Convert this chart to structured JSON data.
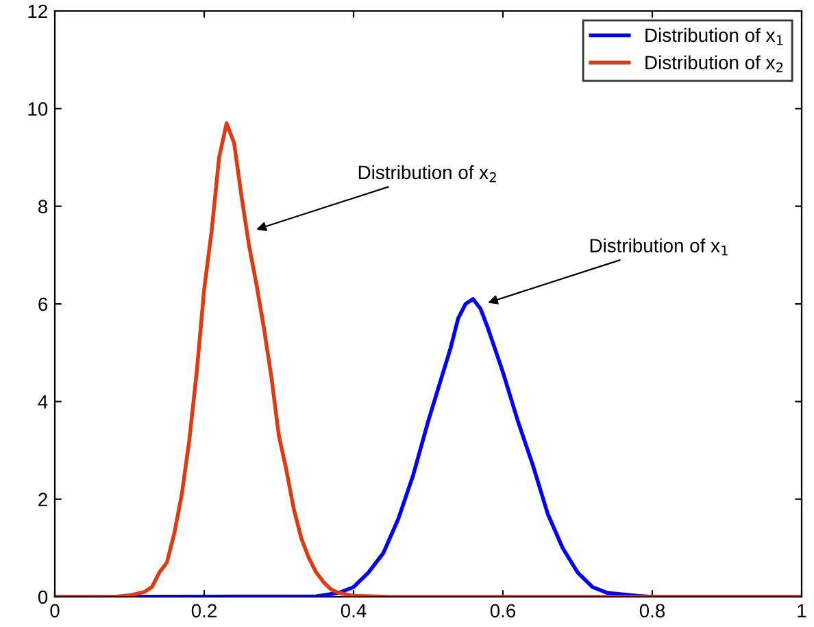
{
  "chart_data": {
    "type": "line",
    "xlim": [
      0,
      1
    ],
    "ylim": [
      0,
      12
    ],
    "xticks": [
      0,
      0.2,
      0.4,
      0.6,
      0.8,
      1
    ],
    "yticks": [
      0,
      2,
      4,
      6,
      8,
      10,
      12
    ],
    "grid": false,
    "legend": "top right",
    "marker": "none",
    "line_style": "solid",
    "series": [
      {
        "name": "Distribution of x$_{1}$",
        "color": "#0000ff",
        "x": [
          0,
          0.35,
          0.38,
          0.4,
          0.42,
          0.44,
          0.46,
          0.48,
          0.5,
          0.52,
          0.53,
          0.54,
          0.55,
          0.56,
          0.57,
          0.58,
          0.6,
          0.62,
          0.64,
          0.66,
          0.68,
          0.7,
          0.72,
          0.74,
          0.78,
          0.8,
          1
        ],
        "values": [
          0,
          0.01,
          0.08,
          0.2,
          0.5,
          0.9,
          1.6,
          2.5,
          3.6,
          4.6,
          5.1,
          5.7,
          6.0,
          6.1,
          5.9,
          5.5,
          4.6,
          3.6,
          2.7,
          1.7,
          1.0,
          0.5,
          0.2,
          0.08,
          0.02,
          0,
          0
        ]
      },
      {
        "name": "Distribution of x$_{2}$",
        "color": "#e03a10",
        "x": [
          0,
          0.08,
          0.1,
          0.12,
          0.13,
          0.14,
          0.15,
          0.16,
          0.17,
          0.18,
          0.19,
          0.2,
          0.21,
          0.22,
          0.23,
          0.24,
          0.25,
          0.26,
          0.27,
          0.28,
          0.29,
          0.3,
          0.31,
          0.32,
          0.33,
          0.34,
          0.35,
          0.36,
          0.37,
          0.38,
          0.4,
          0.45,
          1
        ],
        "values": [
          0,
          0,
          0.03,
          0.1,
          0.2,
          0.5,
          0.7,
          1.3,
          2.1,
          3.2,
          4.6,
          6.3,
          7.5,
          9.0,
          9.7,
          9.3,
          8.2,
          7.2,
          6.4,
          5.5,
          4.5,
          3.3,
          2.6,
          1.8,
          1.2,
          0.8,
          0.5,
          0.3,
          0.15,
          0.08,
          0.02,
          0,
          0
        ]
      }
    ],
    "annotations": [
      {
        "text": "Distribution of x$_{2}$",
        "x": 0.265,
        "y": 7.5
      },
      {
        "text": "Distribution of x$_{1}$",
        "x": 0.575,
        "y": 6.0
      }
    ]
  }
}
